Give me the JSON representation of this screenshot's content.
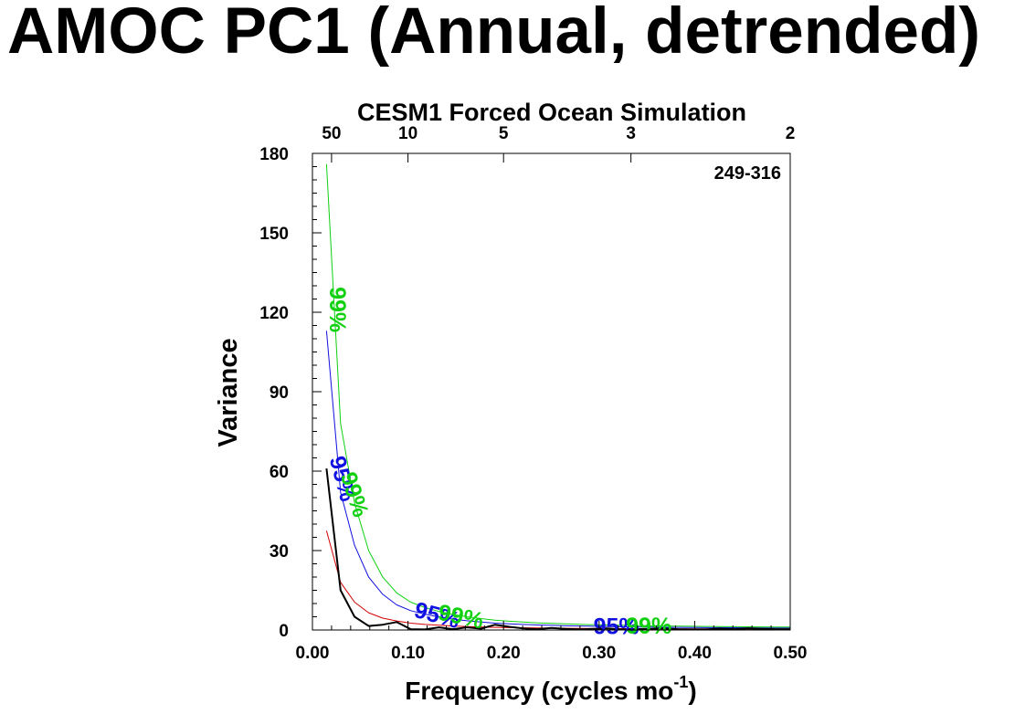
{
  "chart_data": {
    "type": "line",
    "title": "AMOC PC1 (Annual, detrended)",
    "subtitle": "CESM1 Forced Ocean Simulation",
    "xlabel": "Frequency (cycles mo",
    "xlabel_superscript": "-1",
    "xlabel_suffix": ")",
    "ylabel": "Variance",
    "annotation": "249-316",
    "xlim": [
      0,
      0.5
    ],
    "ylim": [
      0,
      180
    ],
    "xticks": [
      0.0,
      0.1,
      0.2,
      0.3,
      0.4,
      0.5
    ],
    "xtick_labels": [
      "0.00",
      "0.10",
      "0.20",
      "0.30",
      "0.40",
      "0.50"
    ],
    "yticks": [
      0,
      30,
      60,
      90,
      120,
      150,
      180
    ],
    "ytick_labels": [
      "0",
      "30",
      "60",
      "90",
      "120",
      "150",
      "180"
    ],
    "top_axis": {
      "periods": [
        50,
        10,
        5,
        3,
        2
      ],
      "labels": [
        "50",
        "10",
        "5",
        "3",
        "2"
      ]
    },
    "colors": {
      "spectrum": "#000000",
      "red_noise": "#d40000",
      "p95": "#1010e0",
      "p99": "#10d010"
    },
    "x": [
      0.0147,
      0.0294,
      0.0441,
      0.0588,
      0.0735,
      0.0882,
      0.1029,
      0.1176,
      0.1324,
      0.1471,
      0.1618,
      0.1765,
      0.1912,
      0.2059,
      0.2206,
      0.2353,
      0.25,
      0.2647,
      0.2794,
      0.2941,
      0.3088,
      0.3235,
      0.3382,
      0.3529,
      0.3676,
      0.3824,
      0.3971,
      0.4118,
      0.4265,
      0.4412,
      0.4559,
      0.4706,
      0.4853,
      0.5
    ],
    "series": [
      {
        "values": [
          61,
          15,
          5,
          1.5,
          2,
          3,
          0.3,
          0.2,
          1,
          0.3,
          1,
          0.5,
          2,
          1.2,
          0.6,
          0.3,
          0.8,
          0.4,
          0.2,
          0.4,
          0.6,
          0.2,
          0.3,
          0.4,
          0.6,
          0.3,
          0.2,
          0.2,
          0.5,
          0.3,
          0.6,
          0.4,
          0.3,
          0.3
        ]
      },
      {
        "values": [
          37.5,
          18,
          10.5,
          6.5,
          4.5,
          3.4,
          2.6,
          2.1,
          1.8,
          1.5,
          1.3,
          1.15,
          1.0,
          0.9,
          0.82,
          0.75,
          0.7,
          0.65,
          0.6,
          0.56,
          0.53,
          0.5,
          0.48,
          0.46,
          0.44,
          0.42,
          0.41,
          0.4,
          0.39,
          0.38,
          0.37,
          0.36,
          0.35,
          0.35
        ]
      },
      {
        "values": [
          113,
          52,
          32,
          20,
          13.5,
          9.5,
          7.3,
          6.0,
          4.9,
          4.1,
          3.5,
          3.0,
          2.6,
          2.3,
          2.1,
          1.9,
          1.75,
          1.6,
          1.5,
          1.4,
          1.3,
          1.2,
          1.15,
          1.1,
          1.05,
          1.0,
          0.95,
          0.9,
          0.88,
          0.85,
          0.82,
          0.8,
          0.78,
          0.76
        ]
      },
      {
        "values": [
          176,
          78,
          48,
          30,
          20,
          14,
          10.5,
          8.5,
          7.0,
          5.9,
          5.0,
          4.3,
          3.7,
          3.3,
          3.0,
          2.7,
          2.5,
          2.3,
          2.15,
          2.0,
          1.9,
          1.8,
          1.7,
          1.6,
          1.5,
          1.45,
          1.4,
          1.35,
          1.3,
          1.25,
          1.2,
          1.18,
          1.15,
          1.12
        ]
      }
    ],
    "contour_labels": [
      {
        "text": "99%",
        "color": "#10d010",
        "x": 0.0245,
        "y": 121,
        "angle": 90
      },
      {
        "text": "95%",
        "color": "#1010e0",
        "x": 0.03,
        "y": 57,
        "angle": 75
      },
      {
        "text": "99%",
        "color": "#10d010",
        "x": 0.0425,
        "y": 51,
        "angle": 72
      },
      {
        "text": "95%",
        "color": "#1010e0",
        "x": 0.13,
        "y": 5,
        "angle": 15
      },
      {
        "text": "99%",
        "color": "#10d010",
        "x": 0.155,
        "y": 4.5,
        "angle": 12
      },
      {
        "text": "95%",
        "color": "#1010e0",
        "x": 0.318,
        "y": 0.7,
        "angle": 0
      },
      {
        "text": "99%",
        "color": "#10d010",
        "x": 0.352,
        "y": 0.9,
        "angle": 0
      }
    ]
  }
}
